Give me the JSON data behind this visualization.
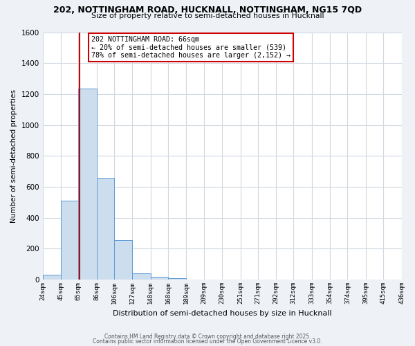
{
  "title_line1": "202, NOTTINGHAM ROAD, HUCKNALL, NOTTINGHAM, NG15 7QD",
  "title_line2": "Size of property relative to semi-detached houses in Hucknall",
  "xlabel": "Distribution of semi-detached houses by size in Hucknall",
  "ylabel": "Number of semi-detached properties",
  "bar_edges": [
    24,
    45,
    65,
    86,
    106,
    127,
    148,
    168,
    189,
    209,
    230,
    251,
    271,
    292,
    312,
    333,
    354,
    374,
    395,
    415,
    436
  ],
  "bar_heights": [
    30,
    510,
    1235,
    660,
    255,
    40,
    20,
    10,
    0,
    0,
    0,
    0,
    0,
    0,
    0,
    0,
    0,
    0,
    0,
    0
  ],
  "bar_color": "#ccdded",
  "bar_edge_color": "#5b9bd5",
  "property_line_x": 66,
  "property_line_color": "#cc0000",
  "annotation_text": "202 NOTTINGHAM ROAD: 66sqm\n← 20% of semi-detached houses are smaller (539)\n78% of semi-detached houses are larger (2,152) →",
  "annotation_box_edgecolor": "#cc0000",
  "ylim": [
    0,
    1600
  ],
  "yticks": [
    0,
    200,
    400,
    600,
    800,
    1000,
    1200,
    1400,
    1600
  ],
  "tick_labels": [
    "24sqm",
    "45sqm",
    "65sqm",
    "86sqm",
    "106sqm",
    "127sqm",
    "148sqm",
    "168sqm",
    "189sqm",
    "209sqm",
    "230sqm",
    "251sqm",
    "271sqm",
    "292sqm",
    "312sqm",
    "333sqm",
    "354sqm",
    "374sqm",
    "395sqm",
    "415sqm",
    "436sqm"
  ],
  "background_color": "#eef2f7",
  "plot_bg_color": "#ffffff",
  "grid_color": "#d0d8e0",
  "footer_line1": "Contains HM Land Registry data © Crown copyright and database right 2025.",
  "footer_line2": "Contains public sector information licensed under the Open Government Licence v3.0."
}
